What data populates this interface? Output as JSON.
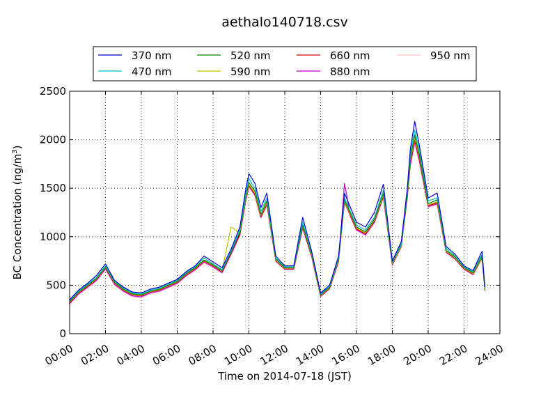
{
  "chart_data": {
    "type": "line",
    "title": "aethalo140718.csv",
    "xlabel": "Time on 2014-07-18 (JST)",
    "ylabel": "BC Concentration (ng/m",
    "ylabel_superscript": "3",
    "ylabel_suffix": ")",
    "xlim": [
      "00:00",
      "24:00"
    ],
    "ylim": [
      0,
      2500
    ],
    "x_ticks": [
      "00:00",
      "02:00",
      "04:00",
      "06:00",
      "08:00",
      "10:00",
      "12:00",
      "14:00",
      "16:00",
      "18:00",
      "20:00",
      "22:00",
      "24:00"
    ],
    "y_ticks": [
      "0",
      "500",
      "1000",
      "1500",
      "2000",
      "2500"
    ],
    "grid": true,
    "legend_placement": "top, above plot, 4 columns",
    "x": [
      "00:00",
      "00:30",
      "01:00",
      "01:30",
      "02:00",
      "02:30",
      "03:00",
      "03:30",
      "04:00",
      "04:30",
      "05:00",
      "05:30",
      "06:00",
      "06:30",
      "07:00",
      "07:30",
      "08:00",
      "08:30",
      "09:00",
      "09:30",
      "09:50",
      "10:00",
      "10:20",
      "10:40",
      "11:00",
      "11:30",
      "12:00",
      "12:30",
      "13:00",
      "13:30",
      "14:00",
      "14:30",
      "15:00",
      "15:20",
      "15:40",
      "16:00",
      "16:30",
      "17:00",
      "17:30",
      "18:00",
      "18:30",
      "18:50",
      "19:00",
      "19:15",
      "19:30",
      "20:00",
      "20:30",
      "21:00",
      "21:30",
      "22:00",
      "22:30",
      "23:00",
      "23:10"
    ],
    "series": [
      {
        "name": "370 nm",
        "color": "#0000cc",
        "values": [
          350,
          450,
          520,
          600,
          720,
          550,
          480,
          430,
          420,
          460,
          480,
          520,
          560,
          640,
          700,
          800,
          740,
          680,
          870,
          1100,
          1500,
          1650,
          1550,
          1300,
          1450,
          800,
          700,
          700,
          1200,
          850,
          420,
          500,
          800,
          1450,
          1300,
          1150,
          1100,
          1250,
          1540,
          750,
          950,
          1500,
          1900,
          2190,
          1950,
          1400,
          1450,
          900,
          820,
          700,
          650,
          850,
          480
        ]
      },
      {
        "name": "470 nm",
        "color": "#00bfbf",
        "values": [
          340,
          440,
          510,
          580,
          700,
          540,
          470,
          420,
          410,
          450,
          470,
          510,
          550,
          630,
          690,
          780,
          720,
          660,
          850,
          1070,
          1450,
          1600,
          1500,
          1260,
          1400,
          780,
          690,
          690,
          1150,
          830,
          410,
          490,
          780,
          1400,
          1260,
          1120,
          1070,
          1200,
          1480,
          740,
          930,
          1460,
          1850,
          2100,
          1900,
          1370,
          1400,
          880,
          800,
          690,
          640,
          820,
          470
        ]
      },
      {
        "name": "520 nm",
        "color": "#008000",
        "values": [
          330,
          430,
          500,
          570,
          690,
          530,
          460,
          410,
          400,
          440,
          460,
          500,
          540,
          620,
          680,
          760,
          710,
          650,
          840,
          1050,
          1420,
          1560,
          1470,
          1230,
          1370,
          770,
          680,
          680,
          1120,
          820,
          400,
          480,
          770,
          1380,
          1240,
          1100,
          1050,
          1180,
          1450,
          730,
          920,
          1430,
          1800,
          2050,
          1850,
          1340,
          1380,
          860,
          790,
          680,
          630,
          800,
          460
        ]
      },
      {
        "name": "590 nm",
        "color": "#bfbf00",
        "values": [
          325,
          425,
          495,
          565,
          685,
          525,
          455,
          405,
          395,
          435,
          455,
          495,
          535,
          615,
          675,
          755,
          705,
          645,
          1100,
          1040,
          1400,
          1540,
          1450,
          1220,
          1350,
          760,
          675,
          675,
          1110,
          810,
          395,
          475,
          760,
          1370,
          1230,
          1090,
          1040,
          1170,
          1430,
          720,
          910,
          1420,
          1780,
          2020,
          1830,
          1330,
          1360,
          850,
          780,
          675,
          620,
          790,
          455
        ]
      },
      {
        "name": "660 nm",
        "color": "#cc0000",
        "values": [
          320,
          420,
          490,
          560,
          680,
          520,
          450,
          400,
          390,
          430,
          450,
          490,
          530,
          610,
          670,
          750,
          700,
          640,
          830,
          1030,
          1390,
          1530,
          1440,
          1210,
          1340,
          755,
          670,
          670,
          1100,
          800,
          390,
          470,
          750,
          1360,
          1220,
          1080,
          1030,
          1160,
          1420,
          715,
          905,
          1410,
          1760,
          2000,
          1810,
          1320,
          1350,
          845,
          775,
          670,
          615,
          785,
          450
        ]
      },
      {
        "name": "880 nm",
        "color": "#bf00bf",
        "values": [
          310,
          410,
          480,
          550,
          670,
          510,
          440,
          390,
          380,
          420,
          440,
          480,
          520,
          600,
          660,
          740,
          690,
          630,
          820,
          1020,
          1380,
          1520,
          1430,
          1200,
          1330,
          750,
          665,
          665,
          1090,
          795,
          385,
          465,
          745,
          1550,
          1210,
          1070,
          1020,
          1150,
          1410,
          710,
          900,
          1400,
          1740,
          1980,
          1790,
          1310,
          1340,
          840,
          770,
          665,
          610,
          780,
          445
        ]
      },
      {
        "name": "950 nm",
        "color": "#ffc0cb",
        "values": [
          300,
          400,
          470,
          540,
          660,
          500,
          430,
          380,
          370,
          410,
          430,
          470,
          510,
          590,
          650,
          730,
          680,
          620,
          810,
          1010,
          1370,
          1510,
          1420,
          1190,
          1320,
          745,
          660,
          660,
          1080,
          790,
          380,
          460,
          740,
          1340,
          1200,
          1060,
          1010,
          1140,
          1400,
          705,
          895,
          1390,
          1720,
          1960,
          1770,
          1300,
          1330,
          835,
          765,
          660,
          605,
          775,
          440
        ]
      }
    ]
  }
}
